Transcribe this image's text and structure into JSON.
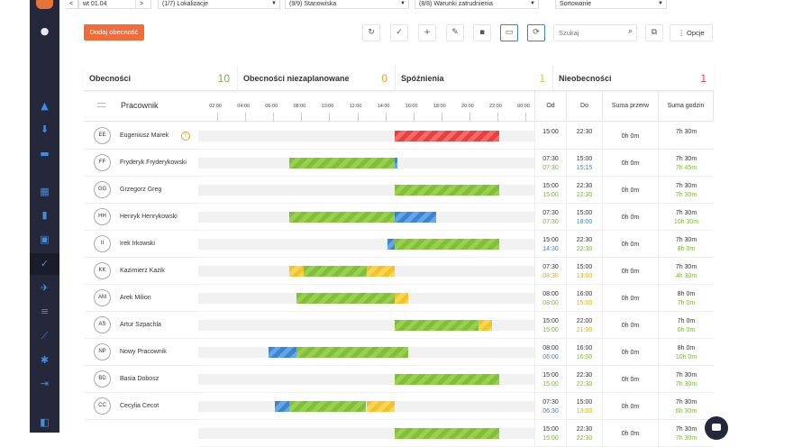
{
  "topbar": {
    "date": "wt 01.04",
    "prev": "<",
    "next": ">",
    "filters": [
      "(1/7) Lokalizacje",
      "(9/9) Stanowiska",
      "(8/8) Warunki zatrudnienia",
      "Sortowanie"
    ]
  },
  "toolbar": {
    "add_label": "Dodaj obecność",
    "search_placeholder": "Szukaj",
    "options_label": "Opcje"
  },
  "stats": [
    {
      "label": "Obecności",
      "value": "10",
      "color": "#7ab833"
    },
    {
      "label": "Obecności niezaplanowane",
      "value": "0",
      "color": "#f29b20"
    },
    {
      "label": "Spóźnienia",
      "value": "1",
      "color": "#f2c22a"
    },
    {
      "label": "Nieobecności",
      "value": "1",
      "color": "#e8403f"
    }
  ],
  "header": {
    "employee": "Pracownik",
    "ticks": [
      "02:00",
      "04:00",
      "06:00",
      "08:00",
      "10:00",
      "12:00",
      "14:00",
      "16:00",
      "18:00",
      "20:00",
      "22:00",
      "00:00"
    ],
    "od": "Od",
    "do": "Do",
    "suma_przerw": "Suma przerw",
    "suma_godzin": "Suma godzin"
  },
  "colors": {
    "green": "#7ab833",
    "blue": "#3b84d3",
    "yellow": "#e0b000",
    "red": "#e8403f",
    "accent": "#f26c3a"
  },
  "rows": [
    {
      "initials": "EE",
      "name": "Eugeniusz Marek",
      "warning": true,
      "od1": "15:00",
      "od2": "",
      "od2c": "green",
      "do1": "22:30",
      "do2": "",
      "do2c": "green",
      "przerwy": "0h 0m",
      "godz1": "7h 30m",
      "godz2": "",
      "godz2c": "green",
      "segments": [
        {
          "type": "r",
          "from": 15.0,
          "to": 22.5
        }
      ]
    },
    {
      "initials": "FF",
      "name": "Fryderyk Fryderykowski",
      "warning": false,
      "od1": "07:30",
      "od2": "07:30",
      "od2c": "green",
      "do1": "15:00",
      "do2": "15:15",
      "do2c": "blue",
      "przerwy": "0h 0m",
      "godz1": "7h 30m",
      "godz2": "7h 45m",
      "godz2c": "green",
      "segments": [
        {
          "type": "g",
          "from": 7.5,
          "to": 15.0
        },
        {
          "type": "b",
          "from": 15.0,
          "to": 15.25
        }
      ]
    },
    {
      "initials": "GG",
      "name": "Grzegorz Greg",
      "warning": false,
      "od1": "15:00",
      "od2": "15:00",
      "od2c": "green",
      "do1": "22:30",
      "do2": "22:30",
      "do2c": "green",
      "przerwy": "0h 0m",
      "godz1": "7h 30m",
      "godz2": "7h 30m",
      "godz2c": "green",
      "segments": [
        {
          "type": "g",
          "from": 15.0,
          "to": 22.5
        }
      ]
    },
    {
      "initials": "HH",
      "name": "Henryk Henrykowski",
      "warning": false,
      "od1": "07:30",
      "od2": "07:30",
      "od2c": "green",
      "do1": "15:00",
      "do2": "18:00",
      "do2c": "blue",
      "przerwy": "0h 0m",
      "godz1": "7h 30m",
      "godz2": "10h 30m",
      "godz2c": "green",
      "segments": [
        {
          "type": "g",
          "from": 7.5,
          "to": 15.0
        },
        {
          "type": "b",
          "from": 15.0,
          "to": 18.0
        }
      ]
    },
    {
      "initials": "II",
      "name": "Irek Irkowski",
      "warning": false,
      "od1": "15:00",
      "od2": "14:30",
      "od2c": "blue",
      "do1": "22:30",
      "do2": "22:30",
      "do2c": "green",
      "przerwy": "0h 0m",
      "godz1": "7h 30m",
      "godz2": "8h 0m",
      "godz2c": "green",
      "segments": [
        {
          "type": "b",
          "from": 14.5,
          "to": 15.0
        },
        {
          "type": "g",
          "from": 15.0,
          "to": 22.5
        }
      ]
    },
    {
      "initials": "KK",
      "name": "Kazimierz Kazik",
      "warning": false,
      "od1": "07:30",
      "od2": "08:30",
      "od2c": "yellow",
      "do1": "15:00",
      "do2": "13:00",
      "do2c": "yellow",
      "przerwy": "0h 0m",
      "godz1": "7h 30m",
      "godz2": "4h 30m",
      "godz2c": "green",
      "segments": [
        {
          "type": "y",
          "from": 7.5,
          "to": 8.5
        },
        {
          "type": "g",
          "from": 8.5,
          "to": 13.0
        },
        {
          "type": "y",
          "from": 13.0,
          "to": 15.0
        }
      ]
    },
    {
      "initials": "AM",
      "name": "Arek Milion",
      "warning": false,
      "od1": "08:00",
      "od2": "08:00",
      "od2c": "green",
      "do1": "16:00",
      "do2": "15:00",
      "do2c": "yellow",
      "przerwy": "0h 0m",
      "godz1": "8h 0m",
      "godz2": "7h 0m",
      "godz2c": "green",
      "segments": [
        {
          "type": "g",
          "from": 8.0,
          "to": 15.0
        },
        {
          "type": "y",
          "from": 15.0,
          "to": 16.0
        }
      ]
    },
    {
      "initials": "AS",
      "name": "Artur Szpachla",
      "warning": false,
      "od1": "15:00",
      "od2": "15:00",
      "od2c": "green",
      "do1": "22:00",
      "do2": "21:00",
      "do2c": "yellow",
      "przerwy": "0h 0m",
      "godz1": "7h 0m",
      "godz2": "6h 0m",
      "godz2c": "green",
      "segments": [
        {
          "type": "g",
          "from": 15.0,
          "to": 21.0
        },
        {
          "type": "y",
          "from": 21.0,
          "to": 22.0
        }
      ]
    },
    {
      "initials": "NP",
      "name": "Nowy Pracownik",
      "warning": false,
      "od1": "08:00",
      "od2": "06:00",
      "od2c": "blue",
      "do1": "16:00",
      "do2": "16:00",
      "do2c": "green",
      "przerwy": "0h 0m",
      "godz1": "8h 0m",
      "godz2": "10h 0m",
      "godz2c": "green",
      "segments": [
        {
          "type": "b",
          "from": 6.0,
          "to": 8.0
        },
        {
          "type": "g",
          "from": 8.0,
          "to": 16.0
        }
      ]
    },
    {
      "initials": "BD",
      "name": "Basia Dobosz",
      "warning": false,
      "od1": "15:00",
      "od2": "15:00",
      "od2c": "green",
      "do1": "22:30",
      "do2": "22:30",
      "do2c": "green",
      "przerwy": "0h 0m",
      "godz1": "7h 30m",
      "godz2": "7h 30m",
      "godz2c": "green",
      "segments": [
        {
          "type": "g",
          "from": 15.0,
          "to": 22.5
        }
      ]
    },
    {
      "initials": "CC",
      "name": "Cecylia Cecot",
      "warning": false,
      "od1": "07:30",
      "od2": "06:30",
      "od2c": "blue",
      "do1": "15:00",
      "do2": "13:00",
      "do2c": "yellow",
      "przerwy": "0h 0m",
      "godz1": "7h 30m",
      "godz2": "6h 30m",
      "godz2c": "green",
      "segments": [
        {
          "type": "b",
          "from": 6.5,
          "to": 7.5
        },
        {
          "type": "g",
          "from": 7.5,
          "to": 13.0
        },
        {
          "type": "y",
          "from": 13.0,
          "to": 15.0
        }
      ]
    },
    {
      "initials": "",
      "name": "",
      "warning": false,
      "od1": "15:00",
      "od2": "15:00",
      "od2c": "green",
      "do1": "22:30",
      "do2": "22:30",
      "do2c": "green",
      "przerwy": "0h 0m",
      "godz1": "7h 30m",
      "godz2": "7h 30m",
      "godz2c": "green",
      "segments": [
        {
          "type": "g",
          "from": 15.0,
          "to": 22.5
        }
      ]
    }
  ]
}
